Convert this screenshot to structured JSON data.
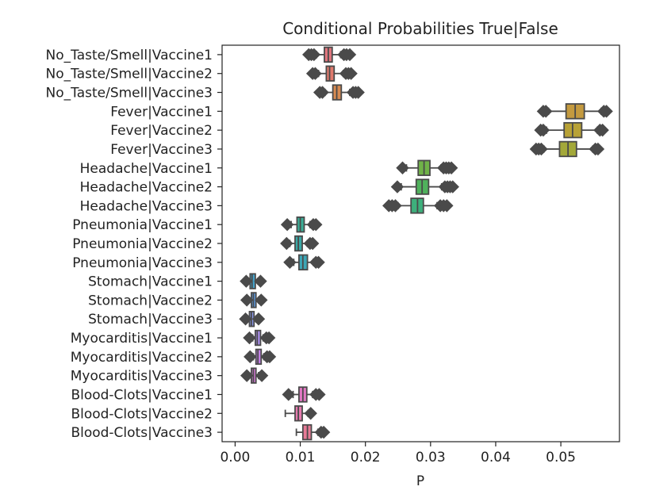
{
  "chart_data": {
    "type": "boxplot",
    "title": "Conditional Probabilities True|False",
    "xlabel": "P",
    "ylabel": "",
    "xlim": [
      -0.002,
      0.059
    ],
    "xticks": [
      0.0,
      0.01,
      0.02,
      0.03,
      0.04,
      0.05
    ],
    "xtick_labels": [
      "0.00",
      "0.01",
      "0.02",
      "0.03",
      "0.04",
      "0.05"
    ],
    "grid": false,
    "categories": [
      "No_Taste/Smell|Vaccine1",
      "No_Taste/Smell|Vaccine2",
      "No_Taste/Smell|Vaccine3",
      "Fever|Vaccine1",
      "Fever|Vaccine2",
      "Fever|Vaccine3",
      "Headache|Vaccine1",
      "Headache|Vaccine2",
      "Headache|Vaccine3",
      "Pneumonia|Vaccine1",
      "Pneumonia|Vaccine2",
      "Pneumonia|Vaccine3",
      "Stomach|Vaccine1",
      "Stomach|Vaccine2",
      "Stomach|Vaccine3",
      "Myocarditis|Vaccine1",
      "Myocarditis|Vaccine2",
      "Myocarditis|Vaccine3",
      "Blood-Clots|Vaccine1",
      "Blood-Clots|Vaccine2",
      "Blood-Clots|Vaccine3"
    ],
    "colors": [
      "#e1767e",
      "#e07a6d",
      "#d78a52",
      "#c49a3f",
      "#b8a236",
      "#a3a839",
      "#70b248",
      "#4fb15c",
      "#3db07c",
      "#3aad96",
      "#3aa9a6",
      "#3ca6b6",
      "#44a1c9",
      "#5c9be0",
      "#8896e6",
      "#a98deb",
      "#c481e8",
      "#d57ad8",
      "#e279c4",
      "#e57aae",
      "#e77a96"
    ],
    "boxes": [
      {
        "whislo": 0.0125,
        "q1": 0.0137,
        "med": 0.0143,
        "q3": 0.0149,
        "whishi": 0.0162,
        "fliers": [
          0.0113,
          0.0117,
          0.0121,
          0.0167,
          0.0171,
          0.0176
        ]
      },
      {
        "whislo": 0.0128,
        "q1": 0.014,
        "med": 0.0145,
        "q3": 0.0152,
        "whishi": 0.0166,
        "fliers": [
          0.0119,
          0.0123,
          0.017,
          0.0174,
          0.0178
        ]
      },
      {
        "whislo": 0.0138,
        "q1": 0.015,
        "med": 0.0156,
        "q3": 0.0163,
        "whishi": 0.0176,
        "fliers": [
          0.013,
          0.0134,
          0.0181,
          0.0185,
          0.0189
        ]
      },
      {
        "whislo": 0.0481,
        "q1": 0.0508,
        "med": 0.0522,
        "q3": 0.0536,
        "whishi": 0.0562,
        "fliers": [
          0.0473,
          0.0477,
          0.0566,
          0.057
        ]
      },
      {
        "whislo": 0.0478,
        "q1": 0.0505,
        "med": 0.0518,
        "q3": 0.0532,
        "whishi": 0.0556,
        "fliers": [
          0.0469,
          0.0473,
          0.056,
          0.0564
        ]
      },
      {
        "whislo": 0.0474,
        "q1": 0.0498,
        "med": 0.0511,
        "q3": 0.0524,
        "whishi": 0.0549,
        "fliers": [
          0.0462,
          0.0466,
          0.047,
          0.0553,
          0.0557
        ]
      },
      {
        "whislo": 0.0263,
        "q1": 0.0281,
        "med": 0.029,
        "q3": 0.0299,
        "whishi": 0.0316,
        "fliers": [
          0.0257,
          0.032,
          0.0324,
          0.0328,
          0.0332
        ]
      },
      {
        "whislo": 0.0255,
        "q1": 0.0278,
        "med": 0.0287,
        "q3": 0.0297,
        "whishi": 0.0317,
        "fliers": [
          0.0249,
          0.0322,
          0.0326,
          0.033,
          0.0334
        ]
      },
      {
        "whislo": 0.025,
        "q1": 0.027,
        "med": 0.028,
        "q3": 0.0289,
        "whishi": 0.031,
        "fliers": [
          0.0236,
          0.0241,
          0.0246,
          0.0315,
          0.032,
          0.0325
        ]
      },
      {
        "whislo": 0.0086,
        "q1": 0.0095,
        "med": 0.01,
        "q3": 0.0106,
        "whishi": 0.0115,
        "fliers": [
          0.008,
          0.012,
          0.0124
        ]
      },
      {
        "whislo": 0.0084,
        "q1": 0.0092,
        "med": 0.0097,
        "q3": 0.0103,
        "whishi": 0.0111,
        "fliers": [
          0.0079,
          0.0115,
          0.0119
        ]
      },
      {
        "whislo": 0.009,
        "q1": 0.0098,
        "med": 0.0104,
        "q3": 0.0111,
        "whishi": 0.012,
        "fliers": [
          0.0084,
          0.0124,
          0.0128
        ]
      },
      {
        "whislo": 0.002,
        "q1": 0.0023,
        "med": 0.0026,
        "q3": 0.0031,
        "whishi": 0.0035,
        "fliers": [
          0.0017,
          0.0039
        ]
      },
      {
        "whislo": 0.0021,
        "q1": 0.0025,
        "med": 0.0028,
        "q3": 0.0032,
        "whishi": 0.0036,
        "fliers": [
          0.0018,
          0.004
        ]
      },
      {
        "whislo": 0.0019,
        "q1": 0.0022,
        "med": 0.0025,
        "q3": 0.0029,
        "whishi": 0.0032,
        "fliers": [
          0.0016,
          0.0036
        ]
      },
      {
        "whislo": 0.0027,
        "q1": 0.0031,
        "med": 0.0034,
        "q3": 0.0039,
        "whishi": 0.0043,
        "fliers": [
          0.0022,
          0.0048,
          0.0052
        ]
      },
      {
        "whislo": 0.0028,
        "q1": 0.0032,
        "med": 0.0035,
        "q3": 0.004,
        "whishi": 0.0044,
        "fliers": [
          0.0023,
          0.0049,
          0.0053
        ]
      },
      {
        "whislo": 0.0021,
        "q1": 0.0025,
        "med": 0.0028,
        "q3": 0.0032,
        "whishi": 0.0036,
        "fliers": [
          0.0018,
          0.0041
        ]
      },
      {
        "whislo": 0.0089,
        "q1": 0.0098,
        "med": 0.0104,
        "q3": 0.011,
        "whishi": 0.0119,
        "fliers": [
          0.0082,
          0.0124,
          0.0129
        ]
      },
      {
        "whislo": 0.0077,
        "q1": 0.0092,
        "med": 0.0097,
        "q3": 0.0103,
        "whishi": 0.0112,
        "fliers": [
          0.0116
        ]
      },
      {
        "whislo": 0.0094,
        "q1": 0.0104,
        "med": 0.0111,
        "q3": 0.0117,
        "whishi": 0.0127,
        "fliers": [
          0.0132,
          0.0136
        ]
      }
    ]
  }
}
